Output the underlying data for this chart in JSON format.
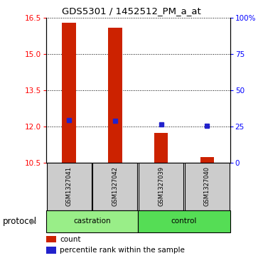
{
  "title": "GDS5301 / 1452512_PM_a_at",
  "samples": [
    "GSM1327041",
    "GSM1327042",
    "GSM1327039",
    "GSM1327040"
  ],
  "bar_tops": [
    16.3,
    16.1,
    11.72,
    10.72
  ],
  "bar_bottom": 10.5,
  "blue_values": [
    12.27,
    12.24,
    12.07,
    12.02
  ],
  "ylim_left": [
    10.5,
    16.5
  ],
  "yticks_left": [
    10.5,
    12.0,
    13.5,
    15.0,
    16.5
  ],
  "yticks_right_labels": [
    "0",
    "25",
    "50",
    "75",
    "100%"
  ],
  "yticks_right_vals": [
    0,
    25,
    50,
    75,
    100
  ],
  "ylim_right": [
    0,
    100
  ],
  "bar_color": "#cc2200",
  "blue_color": "#2222cc",
  "castration_color": "#99ee88",
  "control_color": "#55dd55",
  "sample_box_color": "#cccccc",
  "legend_count": "count",
  "legend_percentile": "percentile rank within the sample",
  "bar_width": 0.3
}
